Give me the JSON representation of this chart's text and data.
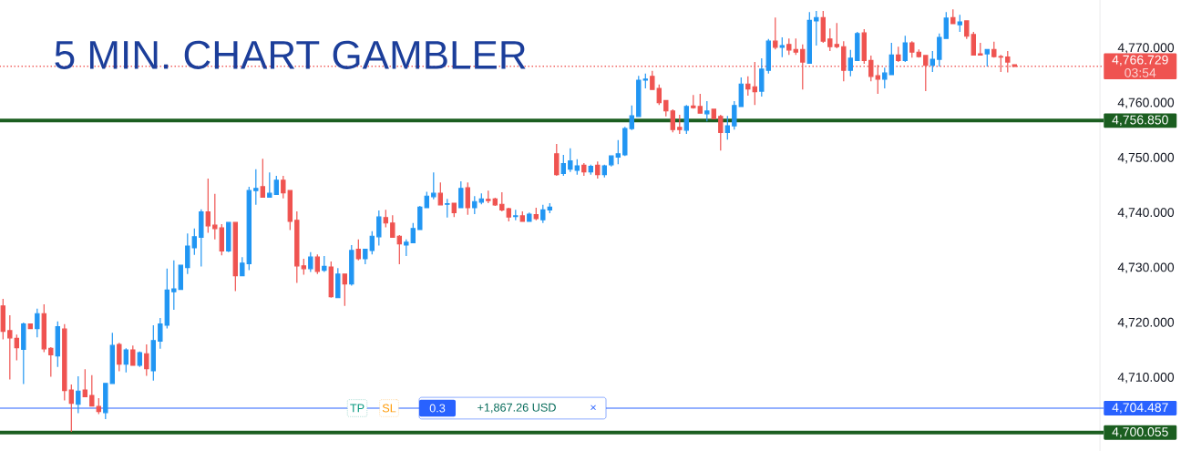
{
  "chart_data": {
    "type": "candlestick",
    "title": "5 MIN. CHART GAMBLER",
    "categories": [
      null,
      null,
      null,
      null,
      null,
      null,
      null,
      null,
      null,
      null,
      null,
      null,
      null,
      null,
      null,
      null,
      null,
      null,
      null,
      null,
      null,
      null,
      null,
      null,
      null,
      null,
      null,
      null,
      null,
      null,
      null,
      null,
      null,
      null,
      null,
      null,
      null,
      null,
      null,
      null,
      null,
      null,
      null,
      null,
      null,
      null,
      null,
      null,
      null,
      null,
      null,
      null,
      null,
      null,
      null,
      null,
      null,
      null,
      null,
      null,
      null,
      null,
      null,
      null,
      null,
      null,
      null,
      null,
      null,
      null,
      null,
      null,
      null,
      null,
      null,
      null,
      null,
      null,
      null,
      null,
      null,
      null,
      null,
      null,
      null,
      null,
      null,
      null,
      null,
      null,
      null,
      null,
      null,
      null,
      null,
      null,
      null,
      null,
      null,
      null,
      null,
      null,
      null,
      null,
      null,
      null,
      null,
      null,
      null,
      null,
      null,
      null,
      null,
      null,
      null,
      null,
      null,
      null,
      null,
      null,
      null,
      null,
      null,
      null,
      null,
      null,
      null,
      null,
      null,
      null,
      null,
      null,
      null,
      null,
      null,
      null,
      null,
      null,
      null,
      null,
      null,
      null,
      null,
      null,
      null,
      null,
      null,
      null,
      null,
      null,
      null,
      null,
      null,
      null,
      null,
      null,
      null,
      null,
      null,
      null,
      null
    ],
    "ohlc": [
      [
        4723.1,
        4724.4,
        4717.0,
        4718.5
      ],
      [
        4718.6,
        4721.4,
        4709.7,
        4717.3
      ],
      [
        4717.2,
        4717.9,
        4713.2,
        4715.5
      ],
      [
        4715.2,
        4720.1,
        4708.9,
        4719.8
      ],
      [
        4719.8,
        4719.8,
        4719.0,
        4719.0
      ],
      [
        4719.0,
        4722.6,
        4717.4,
        4721.7
      ],
      [
        4721.7,
        4723.4,
        4714.7,
        4715.3
      ],
      [
        4715.4,
        4715.6,
        4710.2,
        4714.2
      ],
      [
        4714.0,
        4720.3,
        4712.0,
        4719.3
      ],
      [
        4718.9,
        4719.8,
        4705.9,
        4707.7
      ],
      [
        4707.8,
        4708.8,
        4700.2,
        4705.4
      ],
      [
        4705.2,
        4710.3,
        4703.6,
        4707.6
      ],
      [
        4707.8,
        4711.6,
        4706.5,
        4706.6
      ],
      [
        4706.8,
        4710.5,
        4704.9,
        4704.9
      ],
      [
        4704.8,
        4706.3,
        4703.4,
        4703.9
      ],
      [
        4703.7,
        4709.0,
        4702.5,
        4709.0
      ],
      [
        4709.0,
        4718.2,
        4709.0,
        4715.9
      ],
      [
        4716.1,
        4716.4,
        4711.2,
        4712.5
      ],
      [
        4712.5,
        4715.4,
        4711.0,
        4715.1
      ],
      [
        4715.1,
        4715.9,
        4712.3,
        4712.3
      ],
      [
        4712.3,
        4714.8,
        4712.0,
        4714.6
      ],
      [
        4714.4,
        4716.1,
        4710.4,
        4711.7
      ],
      [
        4711.3,
        4719.6,
        4709.5,
        4716.8
      ],
      [
        4716.7,
        4720.9,
        4715.3,
        4719.8
      ],
      [
        4719.6,
        4729.9,
        4719.0,
        4726.0
      ],
      [
        4725.7,
        4731.4,
        4722.4,
        4726.2
      ],
      [
        4726.1,
        4730.5,
        4726.1,
        4730.5
      ],
      [
        4730.1,
        4736.3,
        4728.9,
        4734.0
      ],
      [
        4733.7,
        4737.2,
        4732.4,
        4735.7
      ],
      [
        4735.6,
        4740.7,
        4730.3,
        4740.2
      ],
      [
        4740.2,
        4746.3,
        4736.4,
        4737.7
      ],
      [
        4737.8,
        4743.5,
        4735.2,
        4737.2
      ],
      [
        4737.3,
        4738.0,
        4732.3,
        4733.1
      ],
      [
        4733.1,
        4738.3,
        4732.9,
        4738.3
      ],
      [
        4738.3,
        4738.3,
        4725.8,
        4728.6
      ],
      [
        4728.6,
        4732.0,
        4728.6,
        4730.9
      ],
      [
        4730.8,
        4744.8,
        4729.6,
        4744.1
      ],
      [
        4744.1,
        4748.0,
        4741.5,
        4744.5
      ],
      [
        4744.8,
        4749.9,
        4742.9,
        4742.9
      ],
      [
        4742.9,
        4747.4,
        4742.9,
        4743.6
      ],
      [
        4743.4,
        4746.8,
        4743.4,
        4746.0
      ],
      [
        4746.0,
        4746.8,
        4742.7,
        4743.7
      ],
      [
        4744.1,
        4744.1,
        4736.9,
        4738.5
      ],
      [
        4738.7,
        4740.3,
        4727.3,
        4730.4
      ],
      [
        4730.4,
        4731.7,
        4728.8,
        4729.9
      ],
      [
        4729.9,
        4732.9,
        4729.3,
        4732.0
      ],
      [
        4732.0,
        4732.5,
        4728.9,
        4729.4
      ],
      [
        4729.6,
        4732.2,
        4729.3,
        4730.3
      ],
      [
        4730.2,
        4731.2,
        4724.6,
        4724.8
      ],
      [
        4724.6,
        4730.0,
        4724.5,
        4728.9
      ],
      [
        4728.9,
        4729.0,
        4723.1,
        4727.1
      ],
      [
        4727.1,
        4734.2,
        4726.8,
        4733.2
      ],
      [
        4733.4,
        4735.2,
        4731.4,
        4731.7
      ],
      [
        4731.7,
        4733.5,
        4730.7,
        4733.4
      ],
      [
        4733.2,
        4736.7,
        4732.5,
        4735.8
      ],
      [
        4735.7,
        4740.5,
        4734.1,
        4739.3
      ],
      [
        4739.2,
        4740.6,
        4737.4,
        4738.2
      ],
      [
        4738.2,
        4739.6,
        4735.6,
        4735.6
      ],
      [
        4735.8,
        4736.0,
        4730.7,
        4734.4
      ],
      [
        4734.2,
        4735.2,
        4732.2,
        4734.7
      ],
      [
        4734.6,
        4738.2,
        4734.6,
        4737.2
      ],
      [
        4737.0,
        4741.3,
        4737.0,
        4741.1
      ],
      [
        4741.0,
        4743.9,
        4741.0,
        4743.1
      ],
      [
        4743.0,
        4747.4,
        4742.5,
        4743.6
      ],
      [
        4743.6,
        4745.6,
        4741.5,
        4741.5
      ],
      [
        4741.6,
        4742.6,
        4739.2,
        4741.7
      ],
      [
        4741.8,
        4741.8,
        4739.3,
        4740.1
      ],
      [
        4741.0,
        4745.8,
        4741.0,
        4744.5
      ],
      [
        4744.6,
        4745.6,
        4739.7,
        4741.0
      ],
      [
        4741.0,
        4743.1,
        4739.8,
        4742.1
      ],
      [
        4742.0,
        4743.6,
        4741.6,
        4742.6
      ],
      [
        4742.5,
        4744.1,
        4741.8,
        4742.3
      ],
      [
        4742.6,
        4742.8,
        4741.3,
        4741.5
      ],
      [
        4741.6,
        4743.8,
        4740.3,
        4740.6
      ],
      [
        4740.8,
        4741.0,
        4738.5,
        4739.3
      ],
      [
        4739.4,
        4740.6,
        4738.7,
        4739.5
      ],
      [
        4739.5,
        4740.3,
        4738.5,
        4738.5
      ],
      [
        4738.5,
        4740.1,
        4738.5,
        4739.8
      ],
      [
        4739.7,
        4741.0,
        4738.7,
        4739.0
      ],
      [
        4738.8,
        4741.5,
        4738.2,
        4740.6
      ],
      [
        4740.6,
        4741.8,
        4740.0,
        4741.1
      ],
      [
        4750.8,
        4752.6,
        4746.8,
        4747.0
      ],
      [
        4747.2,
        4750.6,
        4746.8,
        4749.0
      ],
      [
        4748.0,
        4751.8,
        4747.5,
        4749.5
      ],
      [
        4747.8,
        4749.8,
        4747.0,
        4748.6
      ],
      [
        4748.7,
        4749.1,
        4746.8,
        4747.5
      ],
      [
        4747.5,
        4748.8,
        4747.0,
        4748.5
      ],
      [
        4748.7,
        4749.4,
        4746.3,
        4747.0
      ],
      [
        4747.0,
        4748.8,
        4746.5,
        4748.6
      ],
      [
        4748.8,
        4750.5,
        4748.5,
        4750.4
      ],
      [
        4750.2,
        4753.3,
        4748.9,
        4750.8
      ],
      [
        4750.6,
        4755.7,
        4750.4,
        4755.4
      ],
      [
        4755.4,
        4759.6,
        4755.1,
        4757.7
      ],
      [
        4757.6,
        4765.0,
        4757.6,
        4764.2
      ],
      [
        4764.2,
        4765.4,
        4762.7,
        4764.4
      ],
      [
        4764.9,
        4765.9,
        4762.4,
        4762.5
      ],
      [
        4762.7,
        4763.4,
        4759.7,
        4760.1
      ],
      [
        4760.5,
        4760.5,
        4757.6,
        4758.6
      ],
      [
        4758.6,
        4758.9,
        4754.7,
        4755.2
      ],
      [
        4755.6,
        4757.9,
        4754.4,
        4755.2
      ],
      [
        4755.1,
        4759.7,
        4754.4,
        4759.4
      ],
      [
        4759.5,
        4761.5,
        4759.0,
        4759.2
      ],
      [
        4759.4,
        4761.7,
        4758.2,
        4758.2
      ],
      [
        4758.1,
        4760.4,
        4756.7,
        4758.6
      ],
      [
        4758.9,
        4758.9,
        4757.1,
        4757.2
      ],
      [
        4757.6,
        4757.9,
        4751.4,
        4754.7
      ],
      [
        4754.7,
        4757.7,
        4753.4,
        4755.9
      ],
      [
        4755.9,
        4760.4,
        4755.2,
        4759.6
      ],
      [
        4759.4,
        4764.7,
        4759.4,
        4763.5
      ],
      [
        4763.5,
        4764.9,
        4761.4,
        4762.6
      ],
      [
        4763.0,
        4767.5,
        4759.7,
        4762.1
      ],
      [
        4762.2,
        4768.2,
        4761.2,
        4766.2
      ],
      [
        4766.0,
        4771.7,
        4765.4,
        4771.3
      ],
      [
        4771.3,
        4775.6,
        4769.8,
        4770.2
      ],
      [
        4770.2,
        4772.0,
        4768.4,
        4770.5
      ],
      [
        4770.7,
        4771.8,
        4768.8,
        4769.7
      ],
      [
        4769.8,
        4771.8,
        4768.8,
        4769.3
      ],
      [
        4769.8,
        4770.7,
        4762.5,
        4767.5
      ],
      [
        4767.3,
        4776.6,
        4767.3,
        4775.1
      ],
      [
        4775.0,
        4776.8,
        4770.5,
        4775.6
      ],
      [
        4775.6,
        4776.8,
        4771.0,
        4771.3
      ],
      [
        4771.7,
        4773.6,
        4769.5,
        4770.3
      ],
      [
        4770.7,
        4774.6,
        4770.0,
        4770.3
      ],
      [
        4770.3,
        4771.3,
        4764.0,
        4766.0
      ],
      [
        4766.0,
        4769.7,
        4764.9,
        4768.2
      ],
      [
        4767.8,
        4773.0,
        4767.8,
        4772.7
      ],
      [
        4772.8,
        4773.5,
        4767.2,
        4767.8
      ],
      [
        4767.8,
        4768.7,
        4764.0,
        4764.9
      ],
      [
        4765.0,
        4767.0,
        4761.7,
        4764.4
      ],
      [
        4764.4,
        4766.5,
        4762.7,
        4765.5
      ],
      [
        4765.2,
        4771.0,
        4765.2,
        4768.8
      ],
      [
        4768.8,
        4770.3,
        4767.5,
        4767.8
      ],
      [
        4767.8,
        4772.3,
        4767.5,
        4771.0
      ],
      [
        4771.0,
        4771.3,
        4768.3,
        4769.3
      ],
      [
        4769.3,
        4769.8,
        4768.3,
        4768.5
      ],
      [
        4768.7,
        4768.7,
        4762.2,
        4766.9
      ],
      [
        4766.9,
        4769.5,
        4765.7,
        4768.0
      ],
      [
        4768.0,
        4772.7,
        4766.7,
        4772.0
      ],
      [
        4771.8,
        4776.6,
        4771.8,
        4775.5
      ],
      [
        4775.6,
        4777.1,
        4774.5,
        4774.5
      ],
      [
        4774.3,
        4776.1,
        4773.0,
        4774.8
      ],
      [
        4775.0,
        4775.0,
        4771.7,
        4772.2
      ],
      [
        4772.5,
        4773.0,
        4768.7,
        4768.8
      ],
      [
        4769.0,
        4771.0,
        4768.7,
        4768.8
      ],
      [
        4769.0,
        4769.8,
        4766.7,
        4769.8
      ],
      [
        4769.8,
        4771.2,
        4768.3,
        4768.5
      ],
      [
        4768.5,
        4768.8,
        4765.7,
        4768.4
      ],
      [
        4768.4,
        4769.5,
        4765.6,
        4767.5
      ],
      [
        4767.0,
        4767.0,
        4766.7,
        4766.7
      ],
      null,
      null,
      null,
      null,
      null,
      null,
      null,
      null,
      null,
      null,
      null,
      null
    ],
    "colors": [
      "#ef5350",
      "#ef5350",
      "#ef5350",
      "#2196f3",
      "#ef5350",
      "#2196f3",
      "#ef5350",
      "#ef5350",
      "#2196f3",
      "#ef5350",
      "#ef5350",
      "#2196f3",
      "#ef5350",
      "#ef5350",
      "#ef5350",
      "#2196f3",
      "#2196f3",
      "#ef5350",
      "#2196f3",
      "#ef5350",
      "#2196f3",
      "#ef5350",
      "#2196f3",
      "#2196f3",
      "#2196f3",
      "#2196f3",
      "#2196f3",
      "#2196f3",
      "#2196f3",
      "#2196f3",
      "#ef5350",
      "#ef5350",
      "#ef5350",
      "#2196f3",
      "#ef5350",
      "#2196f3",
      "#2196f3",
      "#2196f3",
      "#ef5350",
      "#2196f3",
      "#2196f3",
      "#ef5350",
      "#ef5350",
      "#ef5350",
      "#ef5350",
      "#2196f3",
      "#ef5350",
      "#2196f3",
      "#ef5350",
      "#2196f3",
      "#ef5350",
      "#2196f3",
      "#ef5350",
      "#2196f3",
      "#2196f3",
      "#2196f3",
      "#ef5350",
      "#ef5350",
      "#ef5350",
      "#2196f3",
      "#2196f3",
      "#2196f3",
      "#2196f3",
      "#2196f3",
      "#ef5350",
      "#2196f3",
      "#ef5350",
      "#2196f3",
      "#ef5350",
      "#2196f3",
      "#2196f3",
      "#ef5350",
      "#ef5350",
      "#ef5350",
      "#ef5350",
      "#2196f3",
      "#ef5350",
      "#2196f3",
      "#ef5350",
      "#2196f3",
      "#2196f3",
      "#ef5350",
      "#2196f3",
      "#2196f3",
      "#2196f3",
      "#ef5350",
      "#2196f3",
      "#ef5350",
      "#2196f3",
      "#2196f3",
      "#2196f3",
      "#2196f3",
      "#2196f3",
      "#2196f3",
      "#2196f3",
      "#ef5350",
      "#ef5350",
      "#ef5350",
      "#ef5350",
      "#ef5350",
      "#2196f3",
      "#ef5350",
      "#ef5350",
      "#2196f3",
      "#ef5350",
      "#ef5350",
      "#2196f3",
      "#2196f3",
      "#2196f3",
      "#ef5350",
      "#ef5350",
      "#2196f3",
      "#2196f3",
      "#ef5350",
      "#2196f3",
      "#ef5350",
      "#ef5350",
      "#ef5350",
      "#2196f3",
      "#2196f3",
      "#ef5350",
      "#ef5350",
      "#ef5350",
      "#ef5350",
      "#2196f3",
      "#2196f3",
      "#ef5350",
      "#ef5350",
      "#ef5350",
      "#2196f3",
      "#2196f3",
      "#ef5350",
      "#2196f3",
      "#ef5350",
      "#ef5350",
      "#ef5350",
      "#2196f3",
      "#2196f3",
      "#2196f3",
      "#ef5350",
      "#2196f3",
      "#ef5350",
      "#ef5350",
      "#ef5350",
      "#2196f3",
      "#ef5350",
      "#ef5350",
      "#ef5350",
      "#ef5350",
      null,
      null,
      null,
      null,
      null,
      null,
      null,
      null,
      null,
      null,
      null,
      null
    ],
    "ylim": [
      4696.7,
      4778.8
    ],
    "yticks": [
      {
        "value": 4710,
        "label": "4,710.000"
      },
      {
        "value": 4720,
        "label": "4,720.000"
      },
      {
        "value": 4730,
        "label": "4,730.000"
      },
      {
        "value": 4740,
        "label": "4,740.000"
      },
      {
        "value": 4750,
        "label": "4,750.000"
      },
      {
        "value": 4760,
        "label": "4,760.000"
      },
      {
        "value": 4770,
        "label": "4,770.000"
      }
    ],
    "ref_lines": [
      {
        "axis": "y",
        "value": 4756.85,
        "label": "4,756.850",
        "color": "#1b5e20",
        "line_style": "solid"
      },
      {
        "axis": "y",
        "value": 4704.487,
        "label": "4,704.487",
        "color": "#2962ff",
        "line_style": "solid"
      },
      {
        "axis": "y",
        "value": 4700.055,
        "label": "4,700.055",
        "color": "#1b5e20",
        "line_style": "solid"
      },
      {
        "axis": "y",
        "value": 4766.729,
        "label": "4,766.729",
        "color": "#ef5350",
        "line_style": "dotted"
      }
    ],
    "annotations": [
      "03:54",
      "TP",
      "SL",
      "0.3",
      "+1,867.26 USD",
      "×"
    ]
  }
}
